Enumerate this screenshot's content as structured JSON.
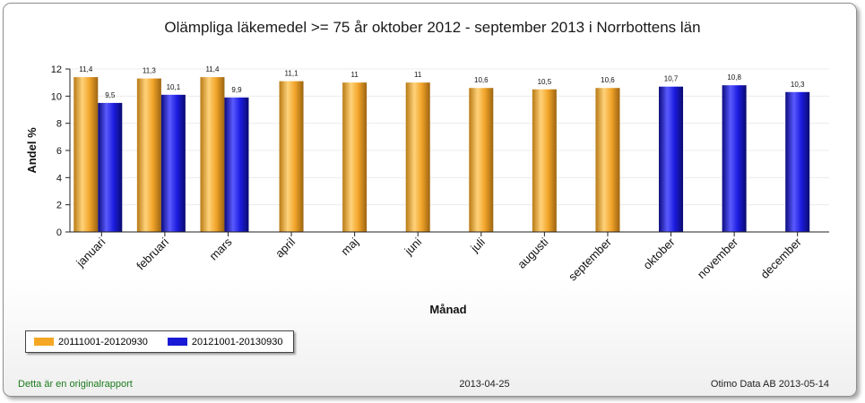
{
  "chart_data": {
    "type": "bar",
    "title": "Olämpliga läkemedel >= 75 år oktober 2012 - september 2013 i Norrbottens län",
    "xlabel": "Månad",
    "ylabel": "Andel %",
    "ylim": [
      0,
      12
    ],
    "yticks": [
      "0",
      "2",
      "4",
      "6",
      "8",
      "10",
      "12"
    ],
    "grid": true,
    "legend_position": "bottom-left",
    "categories": [
      "januari",
      "februari",
      "mars",
      "april",
      "maj",
      "juni",
      "juli",
      "augusti",
      "september",
      "oktober",
      "november",
      "december"
    ],
    "series": [
      {
        "name": "20111001-20120930",
        "color": "#f5a623",
        "values": [
          11.4,
          11.3,
          11.4,
          11.1,
          11,
          11,
          10.6,
          10.5,
          10.6,
          null,
          null,
          null
        ],
        "labels": [
          "11,4",
          "11,3",
          "11,4",
          "11,1",
          "11",
          "11",
          "10,6",
          "10,5",
          "10,6",
          "",
          "",
          ""
        ]
      },
      {
        "name": "20121001-20130930",
        "color": "#1a1ad6",
        "values": [
          9.5,
          10.1,
          9.9,
          null,
          null,
          null,
          null,
          null,
          null,
          10.7,
          10.8,
          10.3
        ],
        "labels": [
          "9,5",
          "10,1",
          "9,9",
          "",
          "",
          "",
          "",
          "",
          "",
          "10,7",
          "10,8",
          "10,3"
        ]
      }
    ]
  },
  "footer": {
    "left": "Detta är en originalrapport",
    "center": "2013-04-25",
    "right": "Otimo Data AB 2013-05-14"
  }
}
